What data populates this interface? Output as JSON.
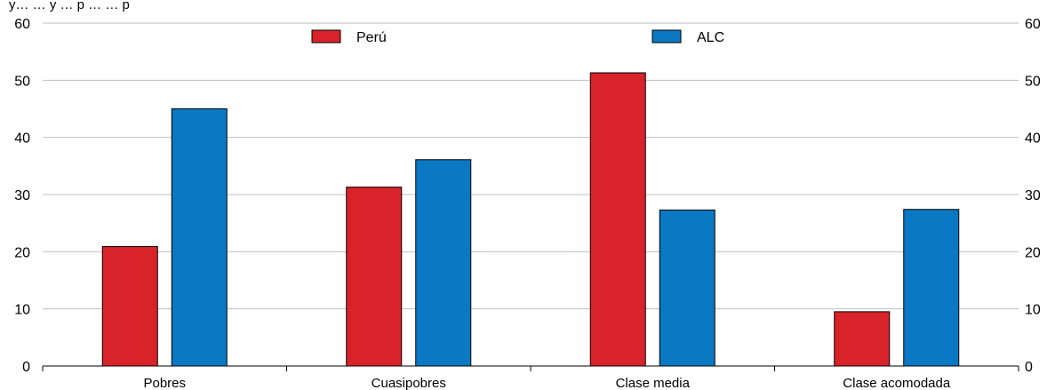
{
  "header_fragment": "y… … y … p … … p",
  "chart_data": {
    "type": "bar",
    "categories": [
      "Pobres",
      "Cuasipobres",
      "Clase media",
      "Clase acomodada"
    ],
    "series": [
      {
        "name": "Perú",
        "values": [
          20.9,
          31.3,
          51.3,
          9.5
        ],
        "color": "#d9232a"
      },
      {
        "name": "ALC",
        "values": [
          45.0,
          36.1,
          27.3,
          27.4
        ],
        "color": "#0a78c2"
      }
    ],
    "ylim": [
      0,
      60
    ],
    "yticks": [
      0,
      10,
      20,
      30,
      40,
      50,
      60
    ],
    "y_axis_sides": "both",
    "grid": true,
    "legend_position": "top"
  }
}
